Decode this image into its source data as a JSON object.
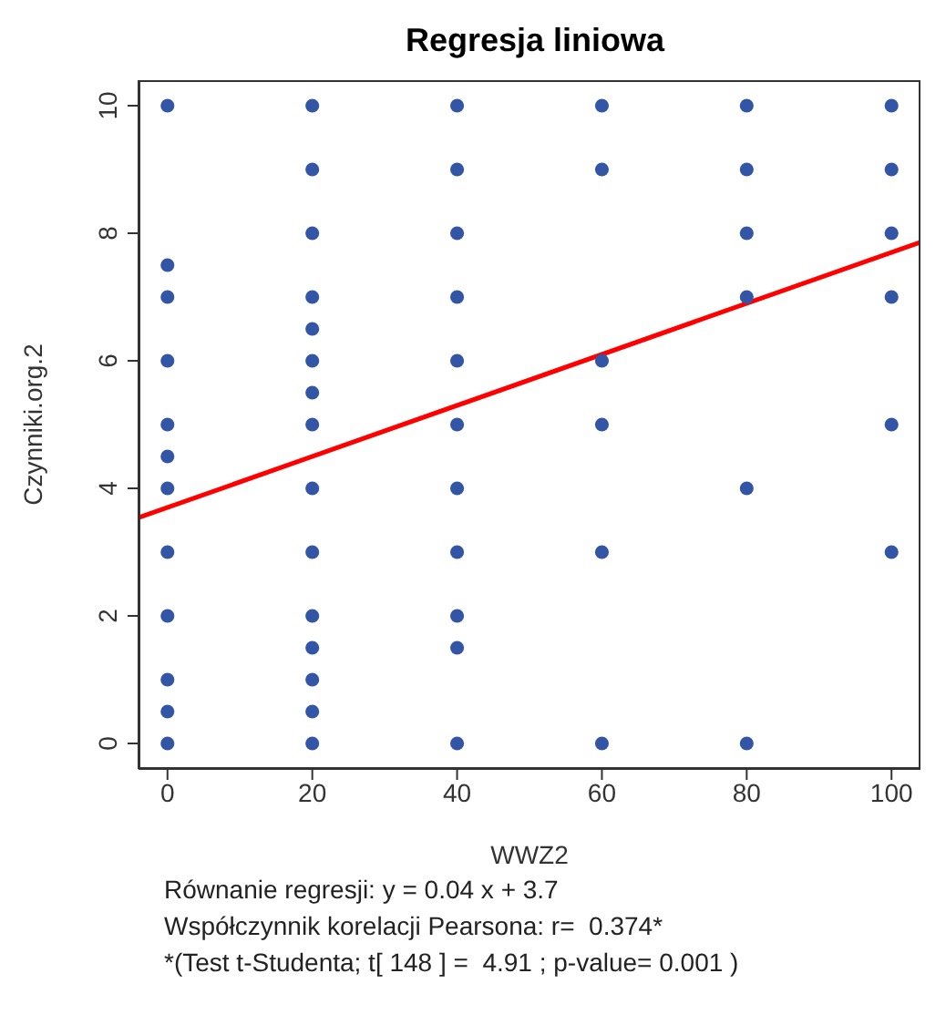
{
  "chart_data": {
    "type": "scatter",
    "title": "Regresja liniowa",
    "xlabel": "WWZ2",
    "ylabel": "Czynniki.org.2",
    "xlim": [
      -4,
      104
    ],
    "ylim": [
      -0.4,
      10.4
    ],
    "xticks": [
      0,
      20,
      40,
      60,
      80,
      100
    ],
    "yticks": [
      0,
      2,
      4,
      6,
      8,
      10
    ],
    "marker": "circle",
    "series": [
      {
        "type": "scatter",
        "color": "#3355a5",
        "x": [
          0,
          0,
          0,
          0,
          0,
          0,
          0,
          0,
          0,
          0,
          0,
          0,
          20,
          20,
          20,
          20,
          20,
          20,
          20,
          20,
          20,
          20,
          20,
          20,
          20,
          20,
          20,
          40,
          40,
          40,
          40,
          40,
          40,
          40,
          40,
          40,
          40,
          40,
          60,
          60,
          60,
          60,
          60,
          60,
          80,
          80,
          80,
          80,
          80,
          80,
          100,
          100,
          100,
          100,
          100,
          100
        ],
        "values": [
          10,
          7.5,
          7,
          6,
          5,
          4.5,
          4,
          3,
          2,
          1,
          0.5,
          0,
          10,
          9,
          8,
          7,
          6.5,
          6,
          5.5,
          5,
          4,
          3,
          2,
          1.5,
          1,
          0.5,
          0,
          10,
          9,
          8,
          7,
          6,
          5,
          4,
          3,
          2,
          1.5,
          0,
          10,
          9,
          6,
          5,
          3,
          0,
          10,
          9,
          8,
          7,
          4,
          0,
          10,
          9,
          8,
          7,
          5,
          3
        ]
      },
      {
        "type": "line",
        "color": "#ff0000",
        "marker": "none",
        "x": [
          -4,
          104
        ],
        "values": [
          3.54,
          7.86
        ]
      }
    ],
    "annotations": [
      "Równanie regresji: y = 0.04 x + 3.7",
      "Współczynnik korelacji Pearsona: r=  0.374*",
      "*(Test t-Studenta; t[ 148 ] =  4.91 ; p-value= 0.001 )"
    ]
  }
}
